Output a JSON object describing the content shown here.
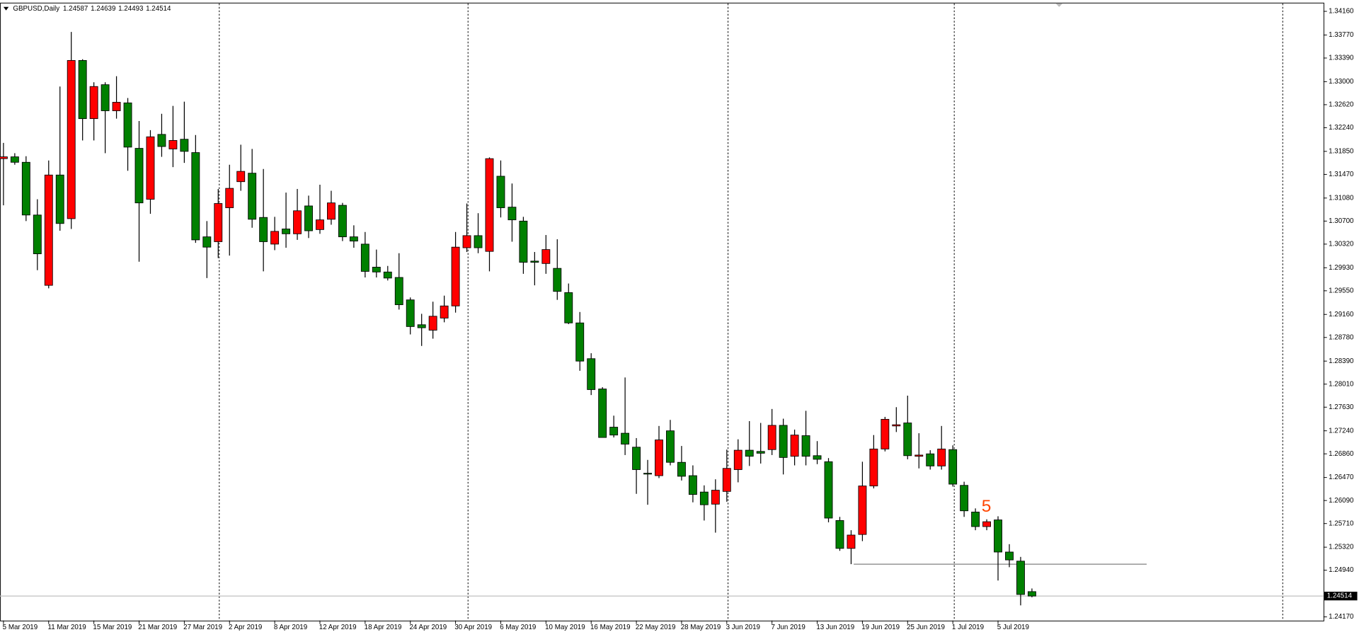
{
  "chart_data": {
    "type": "candlestick",
    "symbol": "GBPUSD,Daily",
    "annotation": "5",
    "categories": [
      "5 Mar 2019",
      null,
      null,
      null,
      "11 Mar 2019",
      null,
      null,
      null,
      "15 Mar 2019",
      null,
      null,
      null,
      "21 Mar 2019",
      null,
      null,
      null,
      "27 Mar 2019",
      null,
      null,
      null,
      "2 Apr 2019",
      null,
      null,
      null,
      "8 Apr 2019",
      null,
      null,
      null,
      "12 Apr 2019",
      null,
      null,
      null,
      "18 Apr 2019",
      null,
      null,
      null,
      "24 Apr 2019",
      null,
      null,
      null,
      "30 Apr 2019",
      null,
      null,
      null,
      "6 May 2019",
      null,
      null,
      null,
      "10 May 2019",
      null,
      null,
      null,
      "16 May 2019",
      null,
      null,
      null,
      "22 May 2019",
      null,
      null,
      null,
      "28 May 2019",
      null,
      null,
      null,
      "3 Jun 2019",
      null,
      null,
      null,
      "7 Jun 2019",
      null,
      null,
      null,
      "13 Jun 2019",
      null,
      null,
      null,
      "19 Jun 2019",
      null,
      null,
      null,
      "25 Jun 2019",
      null,
      null,
      null,
      "1 Jul 2019",
      null,
      null,
      null,
      "5 Jul 2019",
      null,
      null,
      null
    ],
    "open": [
      1.3173,
      1.3176,
      1.3167,
      1.308,
      1.2964,
      1.3146,
      1.3074,
      1.3335,
      1.3239,
      1.3295,
      1.3252,
      1.3265,
      1.319,
      1.3106,
      1.3213,
      1.3189,
      1.3205,
      1.3183,
      1.3044,
      1.3036,
      1.3092,
      1.3135,
      1.3149,
      1.3076,
      1.3032,
      1.3057,
      1.3049,
      1.3095,
      1.3056,
      1.3073,
      1.3096,
      1.3044,
      1.3032,
      1.2994,
      1.2986,
      1.2977,
      1.294,
      1.2899,
      1.289,
      1.291,
      1.293,
      1.3026,
      1.3046,
      1.302,
      1.3144,
      1.3093,
      1.307,
      1.3004,
      1.3,
      1.2992,
      1.2952,
      1.2902,
      1.2843,
      1.2793,
      1.273,
      1.272,
      1.2697,
      1.2654,
      1.265,
      1.2724,
      1.2672,
      1.265,
      1.2623,
      1.2603,
      1.2624,
      1.266,
      1.2692,
      1.269,
      1.2693,
      1.2733,
      1.2682,
      1.2716,
      1.2683,
      1.2673,
      1.2576,
      1.253,
      1.2553,
      1.2633,
      1.2694,
      1.2732,
      1.2737,
      1.2682,
      1.2686,
      1.2666,
      1.2693,
      1.2634,
      1.259,
      1.2566,
      1.2577,
      1.2524,
      1.2509,
      1.24587
    ],
    "high": [
      1.3199,
      1.3182,
      1.3177,
      1.3106,
      1.317,
      1.3292,
      1.3382,
      1.3337,
      1.3299,
      1.3299,
      1.3309,
      1.3273,
      1.3235,
      1.322,
      1.3247,
      1.326,
      1.3267,
      1.3212,
      1.307,
      1.3123,
      1.3163,
      1.3196,
      1.3189,
      1.3156,
      1.3077,
      1.3117,
      1.3123,
      1.3112,
      1.313,
      1.312,
      1.31,
      1.3063,
      1.3052,
      1.3023,
      1.2996,
      1.3017,
      1.2944,
      1.2917,
      1.2937,
      1.2947,
      1.3052,
      1.3099,
      1.3083,
      1.3175,
      1.317,
      1.3132,
      1.3077,
      1.3019,
      1.3047,
      1.304,
      1.2967,
      1.292,
      1.2852,
      1.2796,
      1.2749,
      1.2812,
      1.2712,
      1.2676,
      1.2732,
      1.2742,
      1.2699,
      1.2667,
      1.2634,
      1.2644,
      1.2693,
      1.271,
      1.274,
      1.2737,
      1.276,
      1.2744,
      1.2726,
      1.2757,
      1.2707,
      1.2679,
      1.2582,
      1.256,
      1.2673,
      1.2717,
      1.2747,
      1.2763,
      1.2782,
      1.272,
      1.2692,
      1.2732,
      1.27,
      1.264,
      1.2596,
      1.2578,
      1.2583,
      1.2537,
      1.2516,
      1.24639
    ],
    "low": [
      1.3096,
      1.3163,
      1.307,
      1.2989,
      1.2959,
      1.3054,
      1.3057,
      1.3203,
      1.3203,
      1.3182,
      1.3239,
      1.3153,
      1.3003,
      1.3082,
      1.3176,
      1.3159,
      1.3166,
      1.3034,
      1.2976,
      1.3009,
      1.3013,
      1.312,
      1.3059,
      1.2987,
      1.3022,
      1.3026,
      1.3039,
      1.3042,
      1.3049,
      1.3064,
      1.3037,
      1.3026,
      1.2977,
      1.2977,
      1.2972,
      1.2924,
      1.2883,
      1.2864,
      1.2876,
      1.2903,
      1.2919,
      1.3019,
      1.3017,
      1.2987,
      1.3076,
      1.3036,
      1.2983,
      1.2964,
      1.2983,
      1.294,
      1.29,
      1.2823,
      1.2783,
      1.2713,
      1.2713,
      1.2684,
      1.262,
      1.2602,
      1.2646,
      1.2667,
      1.2642,
      1.2606,
      1.2576,
      1.2556,
      1.2607,
      1.2639,
      1.2666,
      1.267,
      1.2684,
      1.2652,
      1.2667,
      1.2667,
      1.2669,
      1.2573,
      1.2526,
      1.2504,
      1.2542,
      1.2629,
      1.269,
      1.2722,
      1.2677,
      1.2662,
      1.266,
      1.266,
      1.2632,
      1.2582,
      1.256,
      1.256,
      1.2477,
      1.2499,
      1.2436,
      1.24493
    ],
    "close": [
      1.3176,
      1.3167,
      1.308,
      1.3016,
      1.3146,
      1.3066,
      1.3335,
      1.3239,
      1.3292,
      1.3252,
      1.3266,
      1.3192,
      1.31,
      1.3209,
      1.3193,
      1.3203,
      1.3185,
      1.3039,
      1.3027,
      1.3099,
      1.3124,
      1.3152,
      1.3073,
      1.3036,
      1.3053,
      1.3049,
      1.3087,
      1.3054,
      1.3072,
      1.31,
      1.3044,
      1.3037,
      1.2987,
      1.2986,
      1.2976,
      1.2932,
      1.2896,
      1.2894,
      1.2913,
      1.293,
      1.3027,
      1.3046,
      1.3026,
      1.3173,
      1.3092,
      1.3072,
      1.3002,
      1.3002,
      1.3023,
      1.2954,
      1.2902,
      1.2839,
      1.2792,
      1.2713,
      1.2717,
      1.2702,
      1.266,
      1.2653,
      1.2709,
      1.2672,
      1.2649,
      1.2619,
      1.2602,
      1.2626,
      1.2662,
      1.2692,
      1.2682,
      1.2687,
      1.2733,
      1.268,
      1.2717,
      1.2682,
      1.2677,
      1.258,
      1.253,
      1.2552,
      1.2633,
      1.2694,
      1.2743,
      1.2734,
      1.2683,
      1.2684,
      1.2666,
      1.2694,
      1.2636,
      1.2592,
      1.2566,
      1.2574,
      1.2524,
      1.2511,
      1.2454,
      1.24514
    ],
    "up_color": "#ff0000",
    "down_color": "#008000",
    "level_line": 1.2504,
    "ylim": [
      1.2411,
      1.3429
    ],
    "yticks": [
      {
        "value": 1.3416,
        "label": "1.34160"
      },
      {
        "value": 1.3377,
        "label": "1.33770"
      },
      {
        "value": 1.3339,
        "label": "1.33390"
      },
      {
        "value": 1.33,
        "label": "1.33000"
      },
      {
        "value": 1.3262,
        "label": "1.32620"
      },
      {
        "value": 1.3224,
        "label": "1.32240"
      },
      {
        "value": 1.3185,
        "label": "1.31850"
      },
      {
        "value": 1.3147,
        "label": "1.31470"
      },
      {
        "value": 1.3108,
        "label": "1.31080"
      },
      {
        "value": 1.307,
        "label": "1.30700"
      },
      {
        "value": 1.3032,
        "label": "1.30320"
      },
      {
        "value": 1.2993,
        "label": "1.29930"
      },
      {
        "value": 1.2955,
        "label": "1.29550"
      },
      {
        "value": 1.2916,
        "label": "1.29160"
      },
      {
        "value": 1.2878,
        "label": "1.28780"
      },
      {
        "value": 1.2839,
        "label": "1.28390"
      },
      {
        "value": 1.2801,
        "label": "1.28010"
      },
      {
        "value": 1.2763,
        "label": "1.27630"
      },
      {
        "value": 1.2724,
        "label": "1.27240"
      },
      {
        "value": 1.2686,
        "label": "1.26860"
      },
      {
        "value": 1.2647,
        "label": "1.26470"
      },
      {
        "value": 1.2609,
        "label": "1.26090"
      },
      {
        "value": 1.2571,
        "label": "1.25710"
      },
      {
        "value": 1.2532,
        "label": "1.25320"
      },
      {
        "value": 1.2494,
        "label": "1.24940"
      },
      {
        "value": 1.2417,
        "label": "1.24170"
      }
    ],
    "grid": false
  }
}
